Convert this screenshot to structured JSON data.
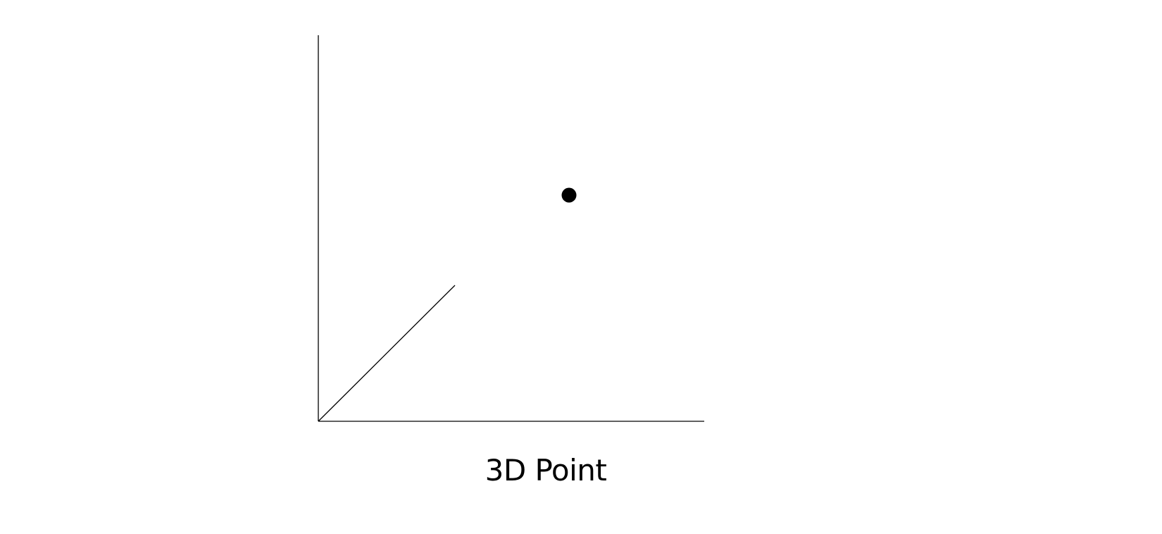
{
  "diagram": {
    "caption": "3D Point",
    "axes": [
      "vertical-axis",
      "horizontal-axis",
      "depth-axis"
    ],
    "marker": "point",
    "colors": {
      "line": "#000000",
      "point": "#000000",
      "background": "#ffffff"
    }
  }
}
